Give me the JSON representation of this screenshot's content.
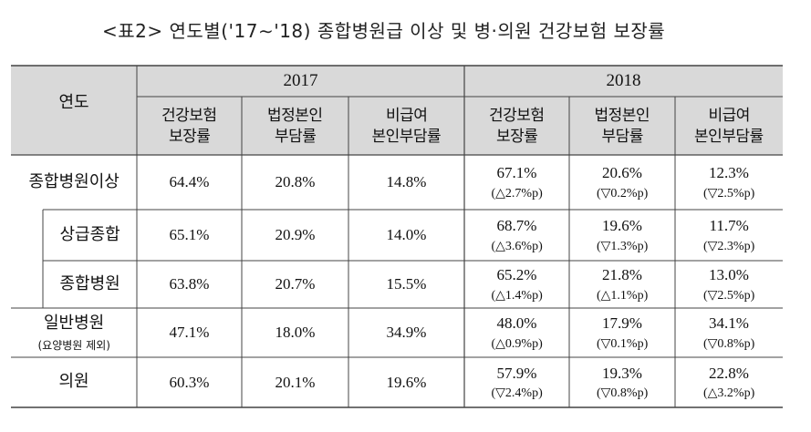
{
  "title": "<표2> 연도별('17∼'18) 종합병원급 이상 및 병·의원 건강보험 보장률",
  "header": {
    "corner": "연도",
    "years": [
      "2017",
      "2018"
    ],
    "subcols": [
      "건강보험\n보장률",
      "법정본인\n부담률",
      "비급여\n본인부담률"
    ]
  },
  "rows": [
    {
      "label": "종합병원이상",
      "sublabel": "",
      "v2017": [
        "64.4%",
        "20.8%",
        "14.8%"
      ],
      "v2018": [
        "67.1%",
        "20.6%",
        "12.3%"
      ],
      "chg2018": [
        "(△2.7%p)",
        "(▽0.2%p)",
        "(▽2.5%p)"
      ]
    },
    {
      "label": "상급종합",
      "sublabel": "",
      "v2017": [
        "65.1%",
        "20.9%",
        "14.0%"
      ],
      "v2018": [
        "68.7%",
        "19.6%",
        "11.7%"
      ],
      "chg2018": [
        "(△3.6%p)",
        "(▽1.3%p)",
        "(▽2.3%p)"
      ]
    },
    {
      "label": "종합병원",
      "sublabel": "",
      "v2017": [
        "63.8%",
        "20.7%",
        "15.5%"
      ],
      "v2018": [
        "65.2%",
        "21.8%",
        "13.0%"
      ],
      "chg2018": [
        "(△1.4%p)",
        "(△1.1%p)",
        "(▽2.5%p)"
      ]
    },
    {
      "label": "일반병원",
      "sublabel": "(요양병원 제외)",
      "v2017": [
        "47.1%",
        "18.0%",
        "34.9%"
      ],
      "v2018": [
        "48.0%",
        "17.9%",
        "34.1%"
      ],
      "chg2018": [
        "(△0.9%p)",
        "(▽0.1%p)",
        "(▽0.8%p)"
      ]
    },
    {
      "label": "의원",
      "sublabel": "",
      "v2017": [
        "60.3%",
        "20.1%",
        "19.6%"
      ],
      "v2018": [
        "57.9%",
        "19.3%",
        "22.8%"
      ],
      "chg2018": [
        "(▽2.4%p)",
        "(▽0.8%p)",
        "(△3.2%p)"
      ]
    }
  ],
  "colors": {
    "header_bg": "#d9d9d9",
    "line": "#444444",
    "text": "#111111"
  }
}
